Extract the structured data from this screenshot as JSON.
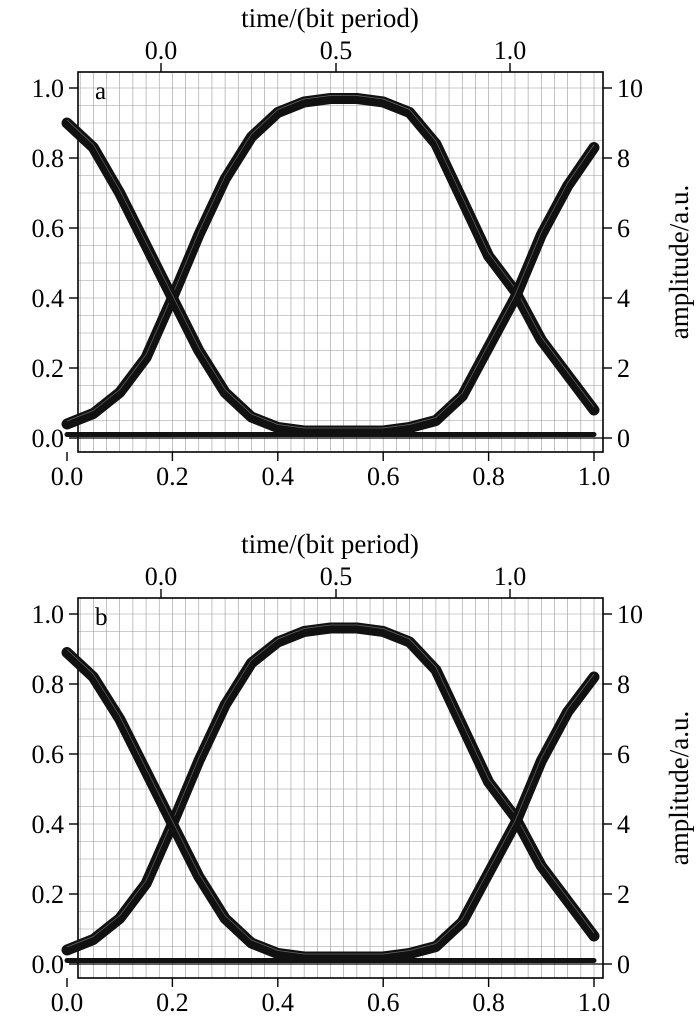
{
  "chart_data": [
    {
      "type": "line",
      "panel_label": "a",
      "top_xlabel": "time/(bit period)",
      "top_xticks": [
        "0.0",
        "0.5",
        "1.0"
      ],
      "bottom_xticks": [
        "0.0",
        "0.2",
        "0.4",
        "0.6",
        "0.8",
        "1.0"
      ],
      "left_yticks": [
        "0.0",
        "0.2",
        "0.4",
        "0.6",
        "0.8",
        "1.0"
      ],
      "right_yticks": [
        "0",
        "2",
        "4",
        "6",
        "8",
        "10"
      ],
      "right_ylabel": "amplitude/a.u.",
      "xlim": [
        0,
        1
      ],
      "ylim": [
        -0.03,
        1.05
      ],
      "grid": true,
      "series": [
        {
          "x": [
            0.0,
            0.05,
            0.1,
            0.15,
            0.2,
            0.25,
            0.3,
            0.35,
            0.4,
            0.45,
            0.5,
            0.55,
            0.6,
            0.65,
            0.7,
            0.75,
            0.8,
            0.85,
            0.9,
            0.95,
            1.0
          ],
          "y": [
            0.04,
            0.07,
            0.13,
            0.23,
            0.4,
            0.58,
            0.74,
            0.86,
            0.93,
            0.96,
            0.97,
            0.97,
            0.96,
            0.93,
            0.84,
            0.68,
            0.52,
            0.42,
            0.28,
            0.18,
            0.08
          ]
        },
        {
          "x": [
            0.0,
            0.05,
            0.1,
            0.15,
            0.2,
            0.25,
            0.3,
            0.35,
            0.4,
            0.45,
            0.5,
            0.55,
            0.6,
            0.65,
            0.7,
            0.75,
            0.8,
            0.85,
            0.9,
            0.95,
            1.0
          ],
          "y": [
            0.9,
            0.83,
            0.7,
            0.55,
            0.4,
            0.25,
            0.13,
            0.06,
            0.03,
            0.02,
            0.02,
            0.02,
            0.02,
            0.03,
            0.05,
            0.12,
            0.26,
            0.4,
            0.58,
            0.72,
            0.83
          ]
        },
        {
          "x": [
            0.0,
            1.0
          ],
          "y": [
            0.01,
            0.01
          ]
        }
      ]
    },
    {
      "type": "line",
      "panel_label": "b",
      "top_xlabel": "time/(bit period)",
      "top_xticks": [
        "0.0",
        "0.5",
        "1.0"
      ],
      "bottom_xticks": [
        "0.0",
        "0.2",
        "0.4",
        "0.6",
        "0.8",
        "1.0"
      ],
      "left_yticks": [
        "0.0",
        "0.2",
        "0.4",
        "0.6",
        "0.8",
        "1.0"
      ],
      "right_yticks": [
        "0",
        "2",
        "4",
        "6",
        "8",
        "10"
      ],
      "right_ylabel": "amplitude/a.u.",
      "xlim": [
        0,
        1
      ],
      "ylim": [
        -0.03,
        1.05
      ],
      "grid": true,
      "series": [
        {
          "x": [
            0.0,
            0.05,
            0.1,
            0.15,
            0.2,
            0.25,
            0.3,
            0.35,
            0.4,
            0.45,
            0.5,
            0.55,
            0.6,
            0.65,
            0.7,
            0.75,
            0.8,
            0.85,
            0.9,
            0.95,
            1.0
          ],
          "y": [
            0.04,
            0.07,
            0.13,
            0.23,
            0.4,
            0.58,
            0.74,
            0.86,
            0.92,
            0.95,
            0.96,
            0.96,
            0.95,
            0.92,
            0.84,
            0.68,
            0.52,
            0.42,
            0.28,
            0.18,
            0.08
          ]
        },
        {
          "x": [
            0.0,
            0.05,
            0.1,
            0.15,
            0.2,
            0.25,
            0.3,
            0.35,
            0.4,
            0.45,
            0.5,
            0.55,
            0.6,
            0.65,
            0.7,
            0.75,
            0.8,
            0.85,
            0.9,
            0.95,
            1.0
          ],
          "y": [
            0.89,
            0.82,
            0.7,
            0.55,
            0.4,
            0.25,
            0.13,
            0.06,
            0.03,
            0.02,
            0.02,
            0.02,
            0.02,
            0.03,
            0.05,
            0.12,
            0.26,
            0.4,
            0.58,
            0.72,
            0.82
          ]
        },
        {
          "x": [
            0.0,
            1.0
          ],
          "y": [
            0.01,
            0.01
          ]
        }
      ]
    }
  ]
}
